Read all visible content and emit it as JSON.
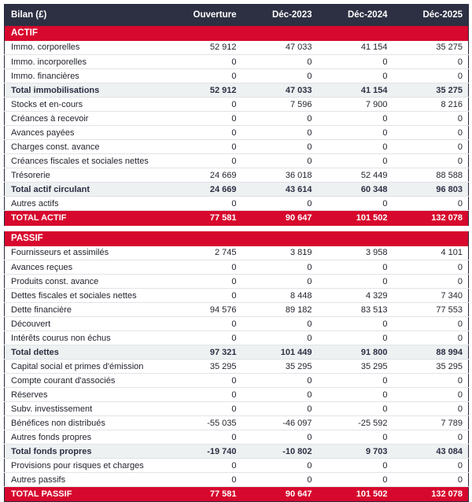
{
  "chart_data": {
    "type": "table",
    "title": "Bilan (£)",
    "columns": [
      "Ouverture",
      "Déc-2023",
      "Déc-2024",
      "Déc-2025"
    ],
    "colors": {
      "header_bg": "#2d2f43",
      "accent_red": "#d7082d",
      "subtotal_bg": "#eef1f2",
      "header_text": "#ffffff"
    },
    "rows": [
      {
        "type": "banner",
        "label": "ACTIF"
      },
      {
        "type": "data",
        "label": "Immo. corporelles",
        "values": [
          52912,
          47033,
          41154,
          35275
        ]
      },
      {
        "type": "data",
        "label": "Immo. incorporelles",
        "values": [
          0,
          0,
          0,
          0
        ]
      },
      {
        "type": "data",
        "label": "Immo. financières",
        "values": [
          0,
          0,
          0,
          0
        ]
      },
      {
        "type": "subtotal",
        "label": "Total immobilisations",
        "values": [
          52912,
          47033,
          41154,
          35275
        ]
      },
      {
        "type": "data",
        "label": "Stocks et en-cours",
        "values": [
          0,
          7596,
          7900,
          8216
        ]
      },
      {
        "type": "data",
        "label": "Créances à recevoir",
        "values": [
          0,
          0,
          0,
          0
        ]
      },
      {
        "type": "data",
        "label": "Avances payées",
        "values": [
          0,
          0,
          0,
          0
        ]
      },
      {
        "type": "data",
        "label": "Charges const. avance",
        "values": [
          0,
          0,
          0,
          0
        ]
      },
      {
        "type": "data",
        "label": "Créances fiscales et sociales nettes",
        "values": [
          0,
          0,
          0,
          0
        ]
      },
      {
        "type": "data",
        "label": "Trésorerie",
        "values": [
          24669,
          36018,
          52449,
          88588
        ]
      },
      {
        "type": "subtotal",
        "label": "Total actif circulant",
        "values": [
          24669,
          43614,
          60348,
          96803
        ]
      },
      {
        "type": "data",
        "label": "Autres actifs",
        "values": [
          0,
          0,
          0,
          0
        ]
      },
      {
        "type": "grand",
        "label": "TOTAL ACTIF",
        "values": [
          77581,
          90647,
          101502,
          132078
        ]
      },
      {
        "type": "gap"
      },
      {
        "type": "banner",
        "label": "PASSIF"
      },
      {
        "type": "data",
        "label": "Fournisseurs et assimilés",
        "values": [
          2745,
          3819,
          3958,
          4101
        ]
      },
      {
        "type": "data",
        "label": "Avances reçues",
        "values": [
          0,
          0,
          0,
          0
        ]
      },
      {
        "type": "data",
        "label": "Produits const. avance",
        "values": [
          0,
          0,
          0,
          0
        ]
      },
      {
        "type": "data",
        "label": "Dettes fiscales et sociales nettes",
        "values": [
          0,
          8448,
          4329,
          7340
        ]
      },
      {
        "type": "data",
        "label": "Dette financière",
        "values": [
          94576,
          89182,
          83513,
          77553
        ]
      },
      {
        "type": "data",
        "label": "Découvert",
        "values": [
          0,
          0,
          0,
          0
        ]
      },
      {
        "type": "data",
        "label": "Intérêts courus non échus",
        "values": [
          0,
          0,
          0,
          0
        ]
      },
      {
        "type": "subtotal",
        "label": "Total dettes",
        "values": [
          97321,
          101449,
          91800,
          88994
        ]
      },
      {
        "type": "data",
        "label": "Capital social et primes d'émission",
        "values": [
          35295,
          35295,
          35295,
          35295
        ]
      },
      {
        "type": "data",
        "label": "Compte courant d'associés",
        "values": [
          0,
          0,
          0,
          0
        ]
      },
      {
        "type": "data",
        "label": "Réserves",
        "values": [
          0,
          0,
          0,
          0
        ]
      },
      {
        "type": "data",
        "label": "Subv. investissement",
        "values": [
          0,
          0,
          0,
          0
        ]
      },
      {
        "type": "data",
        "label": "Bénéfices non distribués",
        "values": [
          -55035,
          -46097,
          -25592,
          7789
        ]
      },
      {
        "type": "data",
        "label": "Autres fonds propres",
        "values": [
          0,
          0,
          0,
          0
        ]
      },
      {
        "type": "subtotal",
        "label": "Total fonds propres",
        "values": [
          -19740,
          -10802,
          9703,
          43084
        ]
      },
      {
        "type": "data",
        "label": "Provisions pour risques et charges",
        "values": [
          0,
          0,
          0,
          0
        ]
      },
      {
        "type": "data",
        "label": "Autres passifs",
        "values": [
          0,
          0,
          0,
          0
        ]
      },
      {
        "type": "grand",
        "label": "TOTAL PASSIF",
        "values": [
          77581,
          90647,
          101502,
          132078
        ]
      }
    ]
  }
}
